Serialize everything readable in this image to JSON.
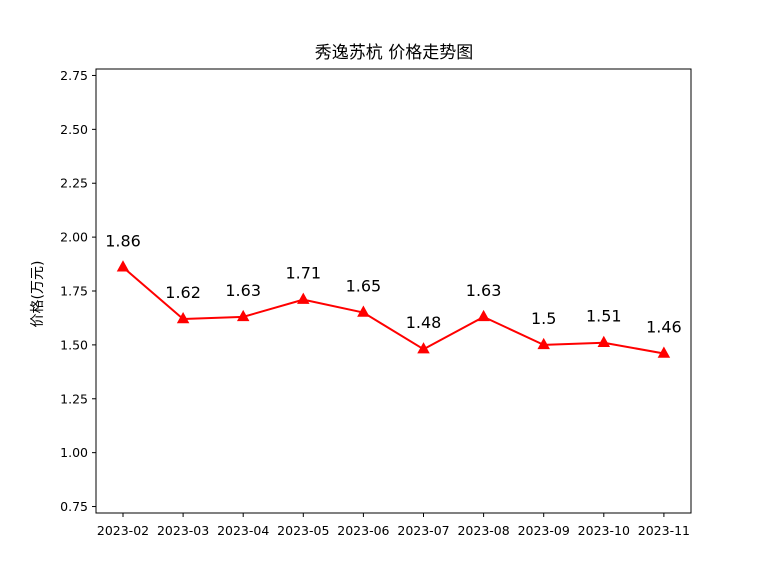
{
  "chart_data": {
    "type": "line",
    "title": "秀逸苏杭 价格走势图",
    "xlabel": "",
    "ylabel": "价格(万元)",
    "categories": [
      "2023-02",
      "2023-03",
      "2023-04",
      "2023-05",
      "2023-06",
      "2023-07",
      "2023-08",
      "2023-09",
      "2023-10",
      "2023-11"
    ],
    "series": [
      {
        "values": [
          1.86,
          1.62,
          1.63,
          1.71,
          1.65,
          1.48,
          1.63,
          1.5,
          1.51,
          1.46
        ],
        "data_labels": [
          "1.86",
          "1.62",
          "1.63",
          "1.71",
          "1.65",
          "1.48",
          "1.63",
          "1.5",
          "1.51",
          "1.46"
        ],
        "color": "#ff0000",
        "marker": "triangle-up"
      }
    ],
    "ylim": [
      0.72,
      2.78
    ],
    "yticks": [
      0.75,
      1.0,
      1.25,
      1.5,
      1.75,
      2.0,
      2.25,
      2.5,
      2.75
    ],
    "ytick_labels": [
      "0.75",
      "1.00",
      "1.25",
      "1.50",
      "1.75",
      "2.00",
      "2.25",
      "2.50",
      "2.75"
    ],
    "grid": false,
    "legend": "none"
  }
}
